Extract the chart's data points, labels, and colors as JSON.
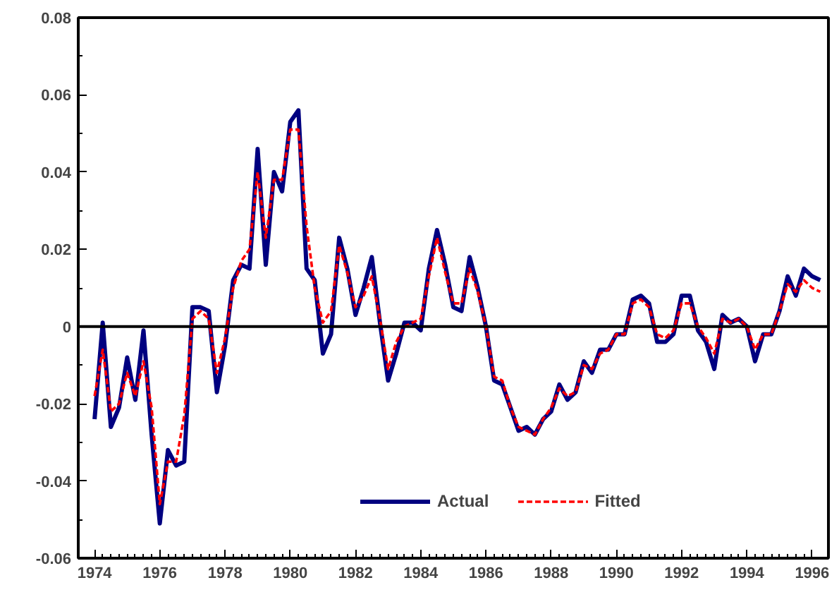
{
  "chart_data": {
    "type": "line",
    "x": [
      1974,
      1974.25,
      1974.5,
      1974.75,
      1975,
      1975.25,
      1975.5,
      1975.75,
      1976,
      1976.25,
      1976.5,
      1976.75,
      1977,
      1977.25,
      1977.5,
      1977.75,
      1978,
      1978.25,
      1978.5,
      1978.75,
      1979,
      1979.25,
      1979.5,
      1979.75,
      1980,
      1980.25,
      1980.5,
      1980.75,
      1981,
      1981.25,
      1981.5,
      1981.75,
      1982,
      1982.25,
      1982.5,
      1982.75,
      1983,
      1983.25,
      1983.5,
      1983.75,
      1984,
      1984.25,
      1984.5,
      1984.75,
      1985,
      1985.25,
      1985.5,
      1985.75,
      1986,
      1986.25,
      1986.5,
      1986.75,
      1987,
      1987.25,
      1987.5,
      1987.75,
      1988,
      1988.25,
      1988.5,
      1988.75,
      1989,
      1989.25,
      1989.5,
      1989.75,
      1990,
      1990.25,
      1990.5,
      1990.75,
      1991,
      1991.25,
      1991.5,
      1991.75,
      1992,
      1992.25,
      1992.5,
      1992.75,
      1993,
      1993.25,
      1993.5,
      1993.75,
      1994,
      1994.25,
      1994.5,
      1994.75,
      1995,
      1995.25,
      1995.5,
      1995.75,
      1996,
      1996.25
    ],
    "series": [
      {
        "name": "Actual",
        "color": "#000080",
        "line_style": "solid",
        "values": [
          -0.024,
          0.001,
          -0.026,
          -0.021,
          -0.008,
          -0.019,
          -0.001,
          -0.028,
          -0.051,
          -0.032,
          -0.036,
          -0.035,
          0.005,
          0.005,
          0.004,
          -0.017,
          -0.005,
          0.012,
          0.016,
          0.015,
          0.046,
          0.016,
          0.04,
          0.035,
          0.053,
          0.056,
          0.015,
          0.012,
          -0.007,
          -0.002,
          0.023,
          0.015,
          0.003,
          0.01,
          0.018,
          0.001,
          -0.014,
          -0.007,
          0.001,
          0.001,
          -0.001,
          0.015,
          0.025,
          0.016,
          0.005,
          0.004,
          0.018,
          0.01,
          0.0,
          -0.014,
          -0.015,
          -0.021,
          -0.027,
          -0.026,
          -0.028,
          -0.024,
          -0.022,
          -0.015,
          -0.019,
          -0.017,
          -0.009,
          -0.012,
          -0.006,
          -0.006,
          -0.002,
          -0.002,
          0.007,
          0.008,
          0.006,
          -0.004,
          -0.004,
          -0.002,
          0.008,
          0.008,
          -0.001,
          -0.004,
          -0.011,
          0.003,
          0.001,
          0.002,
          0.0,
          -0.009,
          -0.002,
          -0.002,
          0.004,
          0.013,
          0.008,
          0.015,
          0.013,
          0.012
        ]
      },
      {
        "name": "Fitted",
        "color": "#ff0000",
        "line_style": "dashed",
        "values": [
          -0.018,
          -0.006,
          -0.022,
          -0.02,
          -0.012,
          -0.018,
          -0.009,
          -0.021,
          -0.046,
          -0.035,
          -0.035,
          -0.023,
          0.002,
          0.004,
          0.002,
          -0.012,
          -0.003,
          0.01,
          0.017,
          0.02,
          0.04,
          0.023,
          0.038,
          0.038,
          0.051,
          0.051,
          0.026,
          0.01,
          0.001,
          0.004,
          0.021,
          0.014,
          0.005,
          0.008,
          0.013,
          0.002,
          -0.011,
          -0.004,
          0.0,
          0.001,
          0.002,
          0.013,
          0.023,
          0.014,
          0.006,
          0.006,
          0.015,
          0.009,
          0.0,
          -0.013,
          -0.014,
          -0.021,
          -0.026,
          -0.027,
          -0.028,
          -0.024,
          -0.021,
          -0.016,
          -0.018,
          -0.017,
          -0.01,
          -0.011,
          -0.007,
          -0.006,
          -0.002,
          -0.002,
          0.006,
          0.007,
          0.005,
          -0.002,
          -0.003,
          -0.001,
          0.006,
          0.006,
          0.0,
          -0.003,
          -0.007,
          0.002,
          0.001,
          0.002,
          0.0,
          -0.006,
          -0.002,
          -0.002,
          0.004,
          0.011,
          0.009,
          0.012,
          0.01,
          0.009
        ]
      }
    ],
    "xlim": [
      1973.5,
      1996.5
    ],
    "xticks": [
      1974,
      1976,
      1978,
      1980,
      1982,
      1984,
      1986,
      1988,
      1990,
      1992,
      1994,
      1996
    ],
    "ylim": [
      -0.06,
      0.08
    ],
    "yticks": [
      -0.06,
      -0.04,
      -0.02,
      0,
      0.02,
      0.04,
      0.06,
      0.08
    ],
    "ref_lines": [
      {
        "axis": "y",
        "value": 0,
        "color": "#000000"
      }
    ],
    "grid": false,
    "legend": "bottom",
    "marker": "none"
  }
}
